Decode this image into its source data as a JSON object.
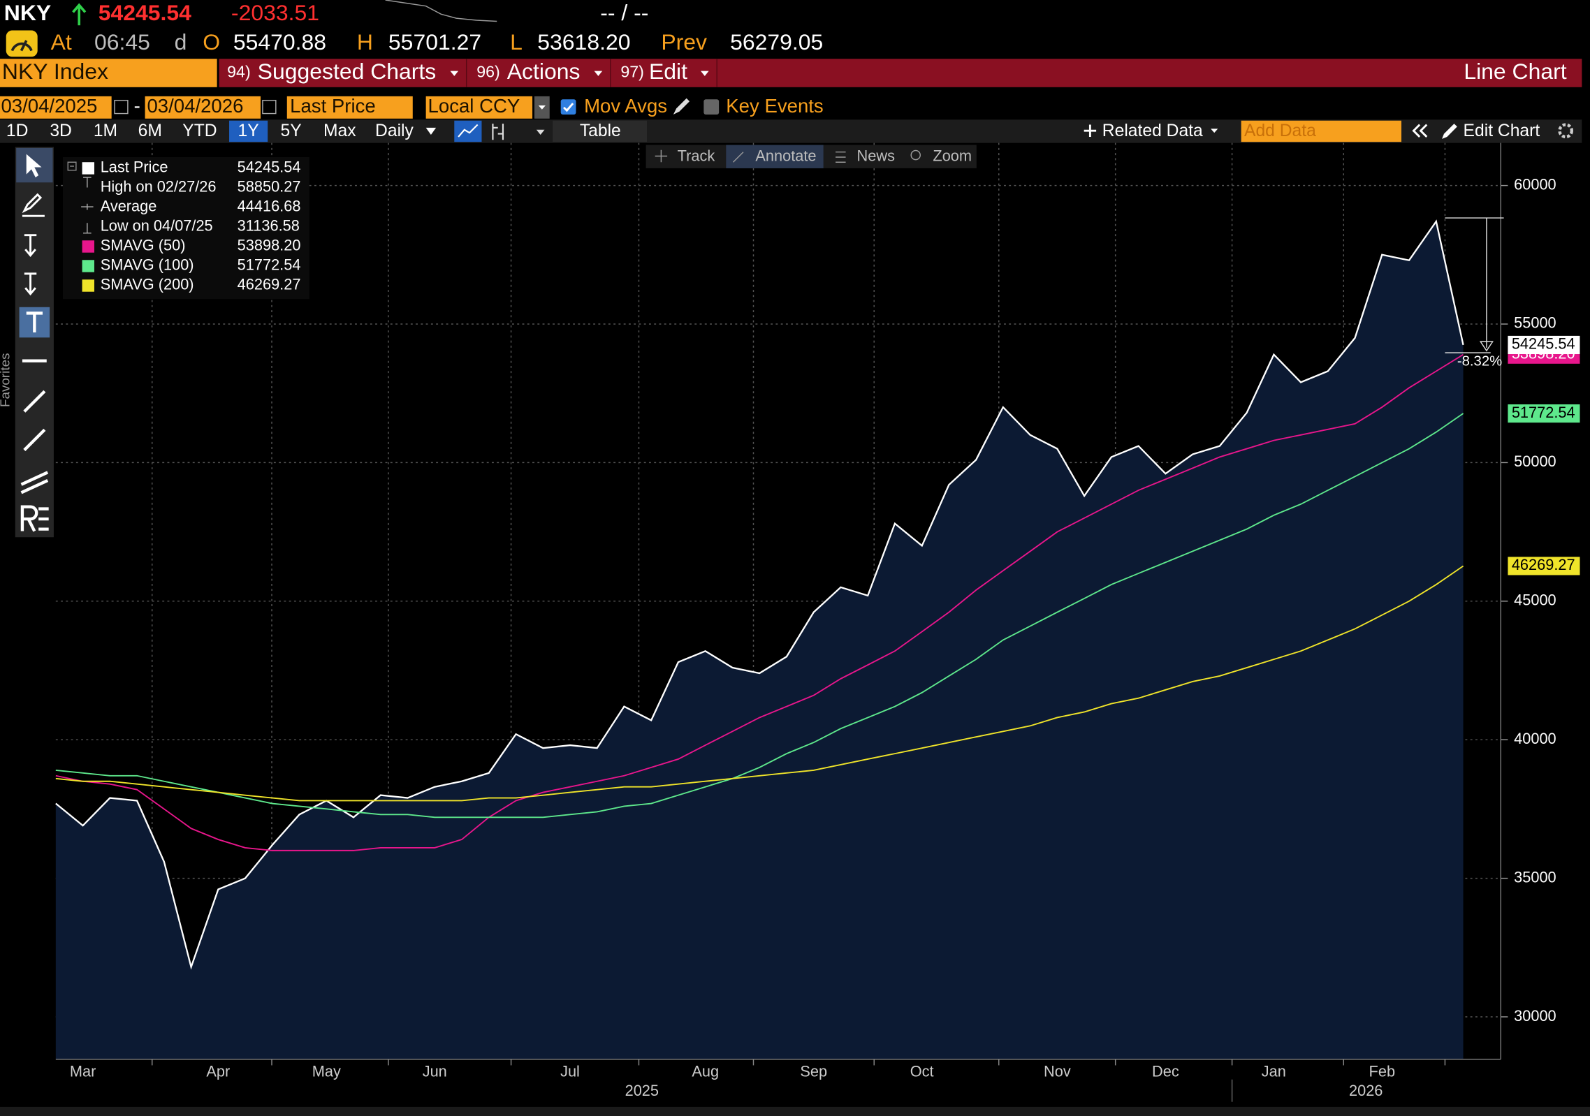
{
  "header": {
    "ticker": "NKY",
    "last": "54245.54",
    "change": "-2033.51",
    "bid_ask": "-- / --",
    "at_label": "At",
    "time": "06:45",
    "d_label": "d",
    "open_label": "O",
    "open": "55470.88",
    "high_label": "H",
    "high": "55701.27",
    "low_label": "L",
    "low": "53618.20",
    "prev_label": "Prev",
    "prev": "56279.05"
  },
  "menu": {
    "security": "NKY Index",
    "items": [
      {
        "key": "94)",
        "label": "Suggested Charts"
      },
      {
        "key": "96)",
        "label": "Actions"
      },
      {
        "key": "97)",
        "label": "Edit"
      }
    ],
    "chart_type": "Line Chart"
  },
  "controls": {
    "start_date": "03/04/2025",
    "date_sep": "-",
    "end_date": "03/04/2026",
    "field": "Last Price",
    "currency": "Local CCY",
    "mov_avgs": "Mov Avgs",
    "key_events": "Key Events"
  },
  "toolbar": {
    "periods": [
      "1D",
      "3D",
      "1M",
      "6M",
      "YTD",
      "1Y",
      "5Y",
      "Max"
    ],
    "selected_period": "1Y",
    "frequency": "Daily",
    "table": "Table",
    "related_data": "Related Data",
    "add_data": "Add Data",
    "edit_chart": "Edit Chart"
  },
  "chart_tools": [
    "Track",
    "Annotate",
    "News",
    "Zoom"
  ],
  "sidebar_label": "Favorites",
  "chart_data": {
    "type": "line",
    "categories": [
      null,
      "Mar",
      null,
      null,
      null,
      null,
      "Apr",
      null,
      null,
      null,
      "May",
      null,
      null,
      null,
      "Jun",
      null,
      null,
      null,
      null,
      "Jul",
      null,
      null,
      null,
      null,
      "Aug",
      null,
      null,
      null,
      "Sep",
      null,
      null,
      null,
      "Oct",
      null,
      null,
      null,
      null,
      "Nov",
      null,
      null,
      null,
      "Dec",
      null,
      null,
      null,
      "Jan",
      null,
      null,
      null,
      "Feb",
      null,
      null,
      null
    ],
    "x_group_labels": [
      "2025",
      "2026"
    ],
    "series": [
      {
        "name": "Last Price",
        "color": "#ffffff",
        "area_color": "#0c1a33",
        "last_label": "54245.54",
        "values": [
          37700,
          36900,
          37900,
          37800,
          35600,
          31800,
          34600,
          35000,
          36200,
          37300,
          37800,
          37200,
          38000,
          37900,
          38300,
          38500,
          38800,
          40200,
          39700,
          39800,
          39700,
          41200,
          40700,
          42800,
          43200,
          42600,
          42400,
          43000,
          44600,
          45500,
          45200,
          47800,
          47000,
          49200,
          50100,
          52000,
          51000,
          50500,
          48800,
          50200,
          50600,
          49600,
          50300,
          50600,
          51800,
          53900,
          52900,
          53300,
          54500,
          57500,
          57300,
          58700,
          54245.54
        ]
      },
      {
        "name": "SMAVG (50)",
        "color": "#e8168c",
        "last_label": "53898.20",
        "values": [
          38700,
          38500,
          38400,
          38200,
          37500,
          36800,
          36400,
          36100,
          36000,
          36000,
          36000,
          36000,
          36100,
          36100,
          36100,
          36400,
          37200,
          37800,
          38100,
          38300,
          38500,
          38700,
          39000,
          39300,
          39800,
          40300,
          40800,
          41200,
          41600,
          42200,
          42700,
          43200,
          43900,
          44600,
          45400,
          46100,
          46800,
          47500,
          48000,
          48500,
          49000,
          49400,
          49800,
          50200,
          50500,
          50800,
          51000,
          51200,
          51400,
          52000,
          52700,
          53300,
          53898.2
        ]
      },
      {
        "name": "SMAVG (100)",
        "color": "#5ee88c",
        "last_label": "51772.54",
        "values": [
          38900,
          38800,
          38700,
          38700,
          38500,
          38300,
          38100,
          37900,
          37700,
          37600,
          37500,
          37400,
          37300,
          37300,
          37200,
          37200,
          37200,
          37200,
          37200,
          37300,
          37400,
          37600,
          37700,
          38000,
          38300,
          38600,
          39000,
          39500,
          39900,
          40400,
          40800,
          41200,
          41700,
          42300,
          42900,
          43600,
          44100,
          44600,
          45100,
          45600,
          46000,
          46400,
          46800,
          47200,
          47600,
          48100,
          48500,
          49000,
          49500,
          50000,
          50500,
          51100,
          51772.54
        ]
      },
      {
        "name": "SMAVG (200)",
        "color": "#f0e42a",
        "last_label": "46269.27",
        "values": [
          38600,
          38500,
          38500,
          38400,
          38300,
          38200,
          38100,
          38000,
          37900,
          37800,
          37800,
          37800,
          37800,
          37800,
          37800,
          37800,
          37900,
          37900,
          38000,
          38100,
          38200,
          38300,
          38300,
          38400,
          38500,
          38600,
          38700,
          38800,
          38900,
          39100,
          39300,
          39500,
          39700,
          39900,
          40100,
          40300,
          40500,
          40800,
          41000,
          41300,
          41500,
          41800,
          42100,
          42300,
          42600,
          42900,
          43200,
          43600,
          44000,
          44500,
          45000,
          45600,
          46269.27
        ]
      }
    ],
    "stats": [
      {
        "label": "High on 02/27/26",
        "value": "58850.27"
      },
      {
        "label": "Average",
        "value": "44416.68"
      },
      {
        "label": "Low on 04/07/25",
        "value": "31136.58"
      }
    ],
    "stats_values": [
      "54245.54",
      "53898.20",
      "51772.54",
      "46269.27"
    ],
    "change_label": "-8.32%",
    "ylim": [
      28470,
      61390
    ],
    "yticks": [
      30000,
      35000,
      40000,
      45000,
      50000,
      55000,
      60000
    ],
    "grid": true
  }
}
